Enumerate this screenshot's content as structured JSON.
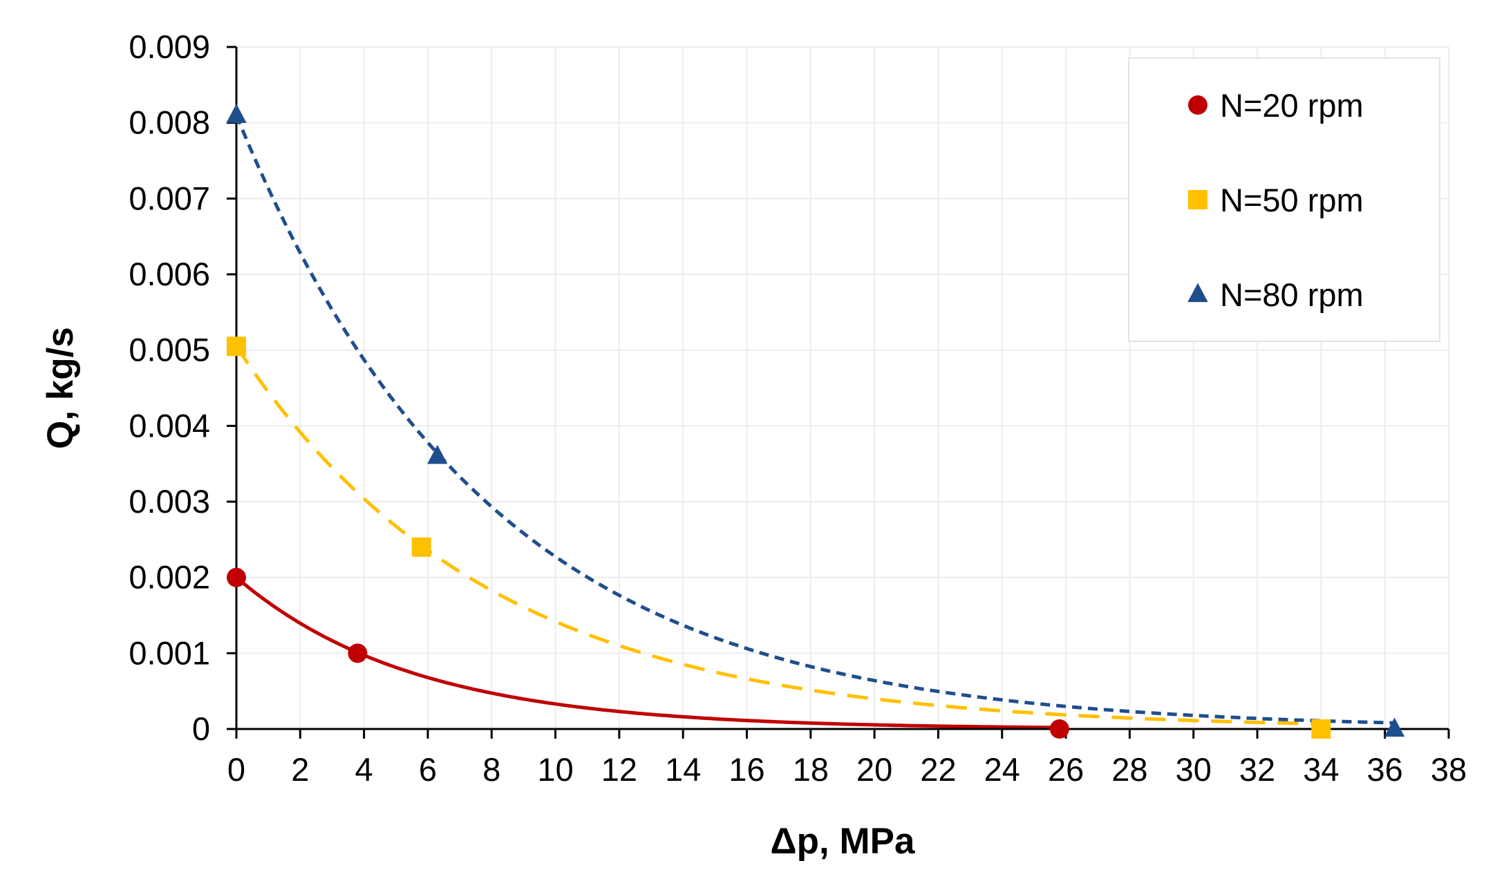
{
  "chart_data": {
    "type": "scatter",
    "title": "",
    "xlabel": "Δp, MPa",
    "ylabel": "Q, kg/s",
    "xlim": [
      0,
      38
    ],
    "ylim": [
      0,
      0.009
    ],
    "xticks": [
      0,
      2,
      4,
      6,
      8,
      10,
      12,
      14,
      16,
      18,
      20,
      22,
      24,
      26,
      28,
      30,
      32,
      34,
      36,
      38
    ],
    "xtick_labels": [
      "0",
      "2",
      "4",
      "6",
      "8",
      "10",
      "12",
      "14",
      "16",
      "18",
      "20",
      "22",
      "24",
      "26",
      "28",
      "30",
      "32",
      "34",
      "36",
      "38"
    ],
    "yticks": [
      0,
      0.001,
      0.002,
      0.003,
      0.004,
      0.005,
      0.006,
      0.007,
      0.008,
      0.009
    ],
    "ytick_labels": [
      "0",
      "0.001",
      "0.002",
      "0.003",
      "0.004",
      "0.005",
      "0.006",
      "0.007",
      "0.008",
      "0.009"
    ],
    "grid": true,
    "legend_position": "top-right",
    "series": [
      {
        "name": "N=20 rpm",
        "color": "#c00000",
        "marker": "circle",
        "line_style": "solid",
        "points": [
          [
            0,
            0.002
          ],
          [
            3.8,
            0.001
          ],
          [
            25.8,
            0.0
          ]
        ],
        "fit": {
          "kind": "exponential",
          "a": 0.002,
          "k": 0.18,
          "x_end": 25.8
        }
      },
      {
        "name": "N=50 rpm",
        "color": "#ffc000",
        "marker": "square",
        "line_style": "long-dash",
        "points": [
          [
            0,
            0.00505
          ],
          [
            5.8,
            0.0024
          ],
          [
            34,
            0.0
          ]
        ],
        "fit": {
          "kind": "exponential",
          "a": 0.00505,
          "k": 0.127,
          "x_end": 34
        }
      },
      {
        "name": "N=80 rpm",
        "color": "#1f4e8c",
        "marker": "triangle",
        "line_style": "short-dash",
        "points": [
          [
            0,
            0.0081
          ],
          [
            6.3,
            0.0036
          ],
          [
            36.3,
            0.0
          ]
        ],
        "fit": {
          "kind": "exponential",
          "a": 0.0081,
          "k": 0.127,
          "x_end": 36.3
        }
      }
    ]
  }
}
